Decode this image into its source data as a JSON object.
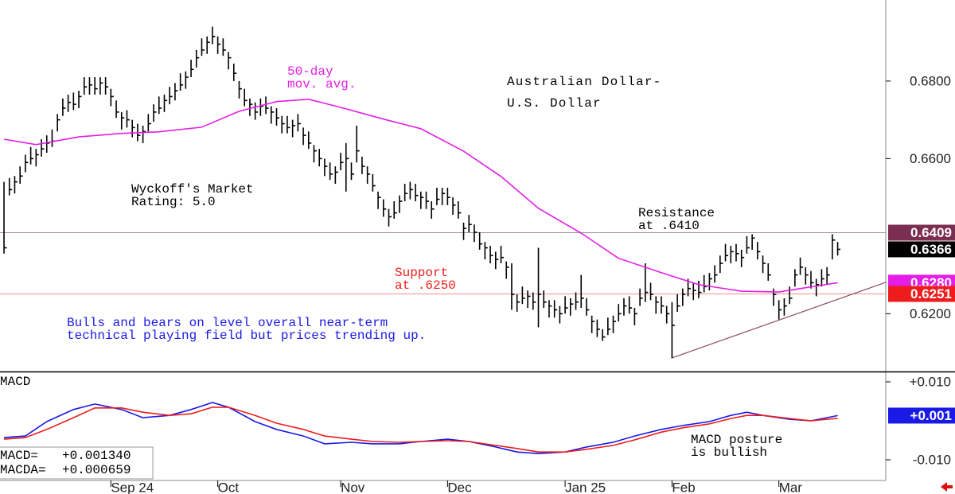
{
  "chart_data": [
    {
      "type": "ohlc",
      "title": [
        "Australian Dollar-",
        "U.S. Dollar"
      ],
      "xlim": [
        -0.75,
        165
      ],
      "ylim": [
        0.6051,
        0.7009
      ],
      "yticks": [
        {
          "value": 0.62,
          "label": "0.6200"
        },
        {
          "value": 0.66,
          "label": "0.6600"
        },
        {
          "value": 0.68,
          "label": "0.6800"
        }
      ],
      "color": "#000000",
      "close": [
        0.637,
        0.652,
        0.654,
        0.6555,
        0.659,
        0.66,
        0.661,
        0.6625,
        0.664,
        0.6645,
        0.67,
        0.673,
        0.6745,
        0.674,
        0.676,
        0.6785,
        0.679,
        0.678,
        0.6795,
        0.6785,
        0.676,
        0.672,
        0.6705,
        0.67,
        0.668,
        0.666,
        0.667,
        0.669,
        0.672,
        0.673,
        0.675,
        0.676,
        0.6775,
        0.679,
        0.681,
        0.683,
        0.686,
        0.688,
        0.69,
        0.6915,
        0.6895,
        0.688,
        0.686,
        0.682,
        0.678,
        0.675,
        0.674,
        0.672,
        0.6735,
        0.673,
        0.672,
        0.6705,
        0.669,
        0.668,
        0.6685,
        0.669,
        0.666,
        0.664,
        0.662,
        0.66,
        0.658,
        0.656,
        0.6565,
        0.659,
        0.66,
        0.656,
        0.662,
        0.658,
        0.656,
        0.653,
        0.65,
        0.647,
        0.645,
        0.646,
        0.649,
        0.651,
        0.652,
        0.6505,
        0.65,
        0.649,
        0.647,
        0.6495,
        0.651,
        0.65,
        0.648,
        0.646,
        0.642,
        0.643,
        0.641,
        0.638,
        0.637,
        0.635,
        0.634,
        0.6345,
        0.632,
        0.625,
        0.623,
        0.624,
        0.6245,
        0.623,
        0.625,
        0.623,
        0.622,
        0.621,
        0.62,
        0.6215,
        0.6225,
        0.623,
        0.624,
        0.621,
        0.618,
        0.616,
        0.614,
        0.616,
        0.618,
        0.62,
        0.622,
        0.6215,
        0.62,
        0.624,
        0.6255,
        0.625,
        0.623,
        0.622,
        0.62,
        0.617,
        0.622,
        0.625,
        0.6265,
        0.626,
        0.6255,
        0.627,
        0.629,
        0.63,
        0.633,
        0.635,
        0.636,
        0.6355,
        0.6345,
        0.637,
        0.6395,
        0.636,
        0.633,
        0.63,
        0.625,
        0.621,
        0.622,
        0.624,
        0.63,
        0.632,
        0.63,
        0.628,
        0.6275,
        0.629,
        0.63,
        0.639,
        0.6366
      ],
      "high": [
        0.654,
        0.655,
        0.6555,
        0.658,
        0.661,
        0.663,
        0.6625,
        0.665,
        0.666,
        0.6675,
        0.6715,
        0.6755,
        0.6765,
        0.677,
        0.6775,
        0.681,
        0.681,
        0.681,
        0.681,
        0.681,
        0.678,
        0.675,
        0.672,
        0.6725,
        0.67,
        0.669,
        0.6685,
        0.6715,
        0.674,
        0.676,
        0.6765,
        0.6785,
        0.6795,
        0.682,
        0.6825,
        0.6855,
        0.688,
        0.691,
        0.6915,
        0.694,
        0.6915,
        0.691,
        0.6875,
        0.6845,
        0.68,
        0.678,
        0.6755,
        0.6745,
        0.6755,
        0.676,
        0.6735,
        0.673,
        0.671,
        0.671,
        0.67,
        0.6715,
        0.668,
        0.667,
        0.6635,
        0.6625,
        0.66,
        0.659,
        0.658,
        0.6615,
        0.664,
        0.659,
        0.6685,
        0.6605,
        0.658,
        0.656,
        0.6515,
        0.6495,
        0.647,
        0.649,
        0.6505,
        0.6535,
        0.654,
        0.6535,
        0.6515,
        0.6515,
        0.649,
        0.6525,
        0.6525,
        0.6525,
        0.65,
        0.649,
        0.6435,
        0.6455,
        0.643,
        0.641,
        0.6385,
        0.6375,
        0.636,
        0.6375,
        0.6335,
        0.633,
        0.625,
        0.627,
        0.626,
        0.6255,
        0.637,
        0.626,
        0.6235,
        0.6235,
        0.622,
        0.6245,
        0.624,
        0.6255,
        0.63,
        0.624,
        0.6195,
        0.6185,
        0.616,
        0.619,
        0.6195,
        0.6225,
        0.624,
        0.6245,
        0.6215,
        0.6265,
        0.633,
        0.628,
        0.6245,
        0.6245,
        0.622,
        0.623,
        0.625,
        0.6265,
        0.629,
        0.628,
        0.6285,
        0.63,
        0.6305,
        0.6325,
        0.635,
        0.638,
        0.6375,
        0.638,
        0.6365,
        0.64,
        0.6405,
        0.6385,
        0.635,
        0.633,
        0.6265,
        0.6235,
        0.624,
        0.627,
        0.6315,
        0.6345,
        0.632,
        0.631,
        0.629,
        0.6315,
        0.632,
        0.6405,
        0.6385
      ],
      "low": [
        0.6355,
        0.6505,
        0.651,
        0.6535,
        0.6565,
        0.6585,
        0.658,
        0.6605,
        0.6615,
        0.663,
        0.667,
        0.671,
        0.672,
        0.6725,
        0.673,
        0.6765,
        0.6765,
        0.6765,
        0.6765,
        0.6765,
        0.6735,
        0.6705,
        0.6675,
        0.668,
        0.6655,
        0.6645,
        0.664,
        0.667,
        0.6695,
        0.6715,
        0.672,
        0.674,
        0.675,
        0.6775,
        0.678,
        0.681,
        0.6835,
        0.6865,
        0.687,
        0.6895,
        0.687,
        0.6865,
        0.683,
        0.68,
        0.6755,
        0.6735,
        0.671,
        0.67,
        0.671,
        0.6715,
        0.669,
        0.6685,
        0.6665,
        0.6665,
        0.6655,
        0.667,
        0.6635,
        0.6625,
        0.659,
        0.658,
        0.6555,
        0.6545,
        0.6535,
        0.657,
        0.6515,
        0.6545,
        0.659,
        0.656,
        0.6535,
        0.6515,
        0.647,
        0.645,
        0.6425,
        0.6445,
        0.646,
        0.649,
        0.6495,
        0.649,
        0.647,
        0.647,
        0.6445,
        0.648,
        0.648,
        0.648,
        0.6455,
        0.6445,
        0.639,
        0.641,
        0.6385,
        0.6365,
        0.634,
        0.633,
        0.6315,
        0.633,
        0.629,
        0.621,
        0.6205,
        0.6225,
        0.6215,
        0.621,
        0.6165,
        0.6215,
        0.619,
        0.619,
        0.6175,
        0.62,
        0.6195,
        0.621,
        0.6215,
        0.6195,
        0.615,
        0.614,
        0.613,
        0.6145,
        0.615,
        0.618,
        0.6195,
        0.62,
        0.617,
        0.622,
        0.623,
        0.6235,
        0.62,
        0.62,
        0.6175,
        0.6085,
        0.6205,
        0.622,
        0.6245,
        0.6235,
        0.624,
        0.6255,
        0.626,
        0.628,
        0.6305,
        0.6335,
        0.633,
        0.6335,
        0.632,
        0.6355,
        0.6365,
        0.634,
        0.6305,
        0.6285,
        0.622,
        0.6185,
        0.6195,
        0.6225,
        0.627,
        0.63,
        0.6275,
        0.6265,
        0.6245,
        0.627,
        0.6275,
        0.634,
        0.635
      ],
      "series": [
        {
          "name": [
            "50-day",
            "mov. avg."
          ],
          "color": "#e41ee4",
          "x": [
            0,
            6,
            14,
            22,
            29,
            37,
            44,
            51,
            57,
            63,
            71,
            78,
            86,
            93,
            100,
            108,
            115,
            123,
            130,
            138,
            145,
            150,
            156
          ],
          "values": [
            0.665,
            0.6636,
            0.6656,
            0.6665,
            0.6669,
            0.6681,
            0.6722,
            0.6747,
            0.6753,
            0.6732,
            0.6702,
            0.6677,
            0.6619,
            0.6554,
            0.6472,
            0.6408,
            0.6343,
            0.6306,
            0.6275,
            0.6258,
            0.6256,
            0.6267,
            0.628
          ],
          "end_label": "0.6280"
        }
      ],
      "levels": [
        {
          "text": [
            "Resistance",
            "at .6410"
          ],
          "value": 0.6409,
          "color": "#7b2d52",
          "line_color": "#a0909a",
          "text_color": "#000000"
        },
        {
          "text": [
            "Support",
            "at .6250"
          ],
          "value": 0.6251,
          "color": "#ee1c1c",
          "line_color": "#f29090",
          "text_color": "#ee1c1c"
        }
      ],
      "close_marker_color": "#000000",
      "trendline": {
        "x": [
          125,
          165
        ],
        "values": [
          0.6086,
          0.6281
        ],
        "color": "#8b4a5e"
      },
      "annotations": [
        {
          "text": [
            "Wyckoff's Market",
            "Rating: 5.0"
          ],
          "color": "#000000"
        },
        {
          "text": [
            "Bulls and bears on level overall near-term",
            "technical playing field but prices trending up."
          ],
          "color": "#1a1ae6"
        }
      ]
    },
    {
      "type": "line",
      "title": "MACD",
      "xlim": [
        -0.75,
        165
      ],
      "ylim": [
        -0.0153,
        0.01245
      ],
      "yticks": [
        {
          "value": -0.01,
          "label": "-0.010"
        },
        {
          "value": 0.01,
          "label": "+0.010"
        }
      ],
      "xticks": [
        {
          "value": 20,
          "label": "Sep 24"
        },
        {
          "value": 40,
          "label": "Oct"
        },
        {
          "value": 63,
          "label": "Nov"
        },
        {
          "value": 83,
          "label": "Dec"
        },
        {
          "value": 105,
          "label": "Jan 25"
        },
        {
          "value": 125,
          "label": "Feb"
        },
        {
          "value": 145,
          "label": "Mar"
        }
      ],
      "legend": "lower left",
      "series": [
        {
          "name": "MACD=",
          "legend_value": "+0.001340",
          "color": "#1a1ae6",
          "end_label": "+0.001",
          "x": [
            0,
            4,
            8,
            13,
            17,
            22,
            26,
            31,
            35,
            39,
            42,
            47,
            51,
            56,
            60,
            65,
            69,
            74,
            78,
            83,
            87,
            92,
            96,
            100,
            105,
            109,
            114,
            118,
            123,
            127,
            132,
            136,
            139,
            142,
            147,
            151,
            156
          ],
          "values": [
            -0.0043,
            -0.0039,
            -0.0002,
            0.0029,
            0.0043,
            0.0029,
            0.0008,
            0.0014,
            0.0029,
            0.0047,
            0.0035,
            -0.0002,
            -0.0022,
            -0.0039,
            -0.0059,
            -0.0055,
            -0.0059,
            -0.0059,
            -0.0053,
            -0.0047,
            -0.0053,
            -0.0067,
            -0.008,
            -0.0084,
            -0.008,
            -0.0067,
            -0.0055,
            -0.0039,
            -0.0022,
            -0.0012,
            -0.0002,
            0.0014,
            0.0022,
            0.0014,
            0.0004,
            0,
            0.00134
          ]
        },
        {
          "name": "MACDA=",
          "legend_value": "+0.000659",
          "color": "#ee1c1c",
          "x": [
            0,
            4,
            8,
            13,
            17,
            22,
            26,
            31,
            35,
            39,
            42,
            47,
            51,
            56,
            60,
            65,
            69,
            74,
            78,
            83,
            87,
            92,
            96,
            100,
            105,
            109,
            114,
            118,
            123,
            127,
            132,
            136,
            139,
            142,
            147,
            151,
            156
          ],
          "values": [
            -0.0047,
            -0.0043,
            -0.0022,
            0.0008,
            0.0033,
            0.0033,
            0.0022,
            0.0014,
            0.0018,
            0.0035,
            0.0035,
            0.0014,
            -0.0006,
            -0.0022,
            -0.0039,
            -0.0047,
            -0.0053,
            -0.0055,
            -0.0053,
            -0.0051,
            -0.0053,
            -0.0063,
            -0.0071,
            -0.008,
            -0.008,
            -0.0073,
            -0.0063,
            -0.0049,
            -0.0029,
            -0.0018,
            -0.0008,
            0.0006,
            0.0014,
            0.0014,
            0.0006,
            0,
            0.000659
          ]
        }
      ],
      "annotations": [
        {
          "text": [
            "MACD posture",
            "is bullish"
          ],
          "color": "#000000"
        }
      ]
    }
  ]
}
